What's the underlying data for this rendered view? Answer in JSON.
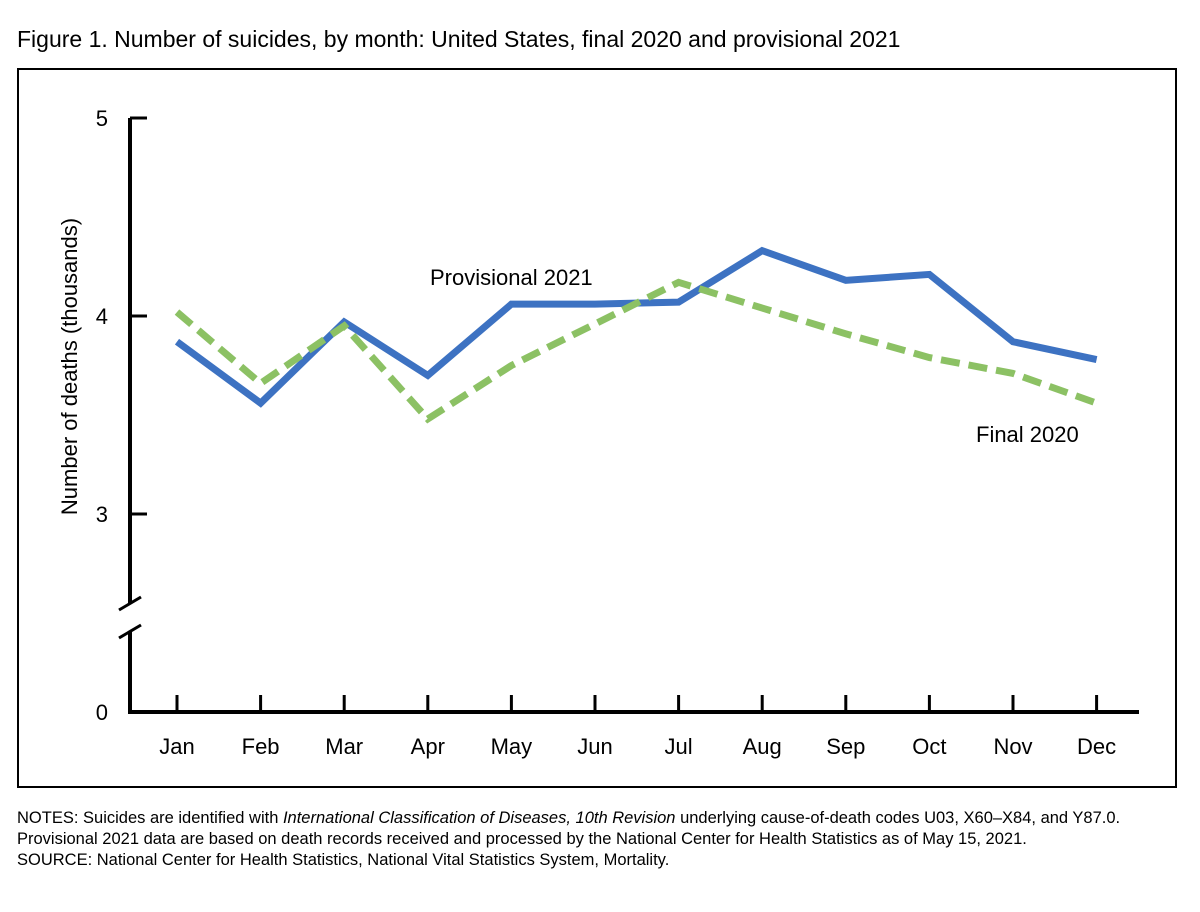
{
  "figure": {
    "title": "Figure 1. Number of suicides, by month: United States, final 2020 and provisional 2021"
  },
  "chart_data": {
    "type": "line",
    "title": "Figure 1. Number of suicides, by month: United States, final 2020 and provisional 2021",
    "xlabel": "",
    "ylabel": "Number of deaths (thousands)",
    "categories": [
      "Jan",
      "Feb",
      "Mar",
      "Apr",
      "May",
      "Jun",
      "Jul",
      "Aug",
      "Sep",
      "Oct",
      "Nov",
      "Dec"
    ],
    "y_ticks": [
      "0",
      "3",
      "4",
      "5"
    ],
    "y_tick_values": [
      0,
      3,
      4,
      5
    ],
    "ylim": [
      0,
      5
    ],
    "axis_break": true,
    "grid": false,
    "legend": "none",
    "series": [
      {
        "name": "Provisional 2021",
        "style": "solid",
        "color": "#3d72c2",
        "values": [
          3.87,
          3.56,
          3.97,
          3.7,
          4.06,
          4.06,
          4.07,
          4.33,
          4.18,
          4.21,
          3.87,
          3.78
        ]
      },
      {
        "name": "Final 2020",
        "style": "dashed",
        "color": "#8cc164",
        "values": [
          4.02,
          3.66,
          3.95,
          3.48,
          3.75,
          3.96,
          4.17,
          4.04,
          3.91,
          3.79,
          3.71,
          3.56
        ]
      }
    ]
  },
  "notes": {
    "part1": "NOTES: Suicides are identified with ",
    "italic": "International Classification of Diseases, 10th Revision",
    "part2": " underlying cause-of-death codes U03, X60–X84, and Y87.0. Provisional 2021 data are based on death records received and processed by the National Center for Health Statistics as of May 15, 2021.",
    "source": "SOURCE: National Center for Health Statistics, National Vital Statistics System, Mortality."
  }
}
